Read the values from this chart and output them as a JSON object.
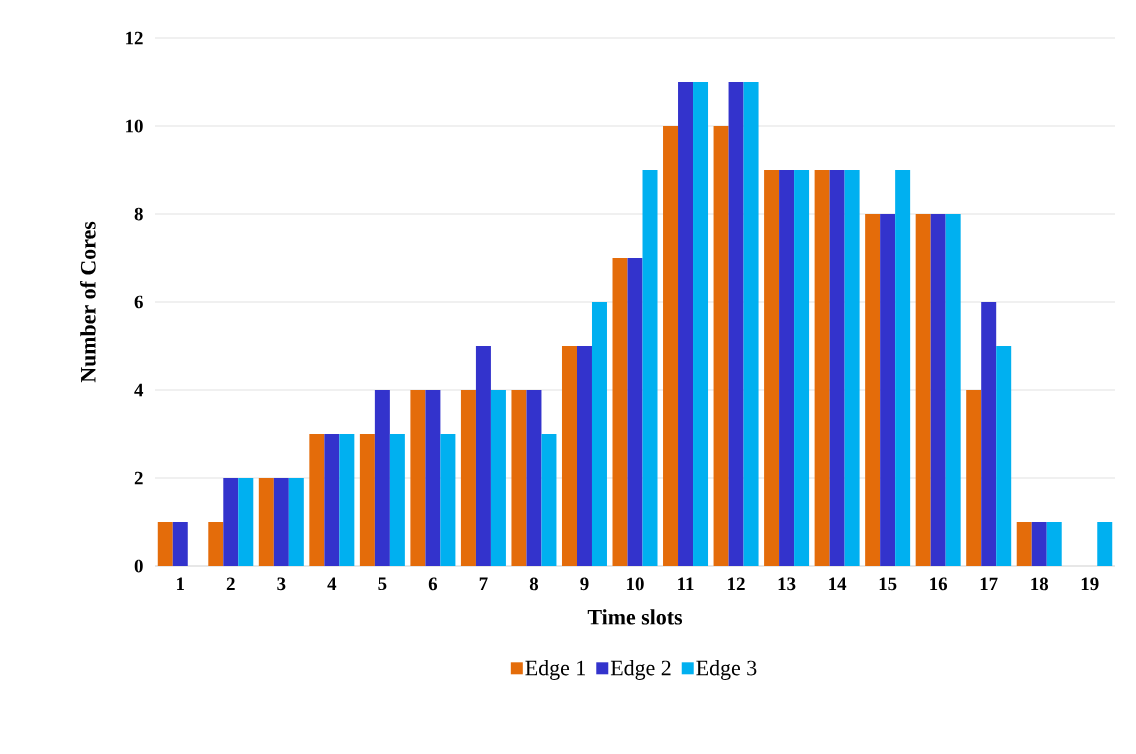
{
  "chart_data": {
    "type": "bar",
    "xlabel": "Time slots",
    "ylabel": "Number of Cores",
    "categories": [
      "1",
      "2",
      "3",
      "4",
      "5",
      "6",
      "7",
      "8",
      "9",
      "10",
      "11",
      "12",
      "13",
      "14",
      "15",
      "16",
      "17",
      "18",
      "19"
    ],
    "series": [
      {
        "name": "Edge 1",
        "color": "#e46c0a",
        "values": [
          1,
          1,
          2,
          3,
          3,
          4,
          4,
          4,
          5,
          7,
          10,
          10,
          9,
          9,
          8,
          8,
          4,
          1,
          0
        ]
      },
      {
        "name": "Edge 2",
        "color": "#3333cc",
        "values": [
          1,
          2,
          2,
          3,
          4,
          4,
          5,
          4,
          5,
          7,
          11,
          11,
          9,
          9,
          8,
          8,
          6,
          1,
          0
        ]
      },
      {
        "name": "Edge 3",
        "color": "#00b0f0",
        "values": [
          0,
          2,
          2,
          3,
          3,
          3,
          4,
          3,
          6,
          9,
          11,
          11,
          9,
          9,
          9,
          8,
          5,
          1,
          1
        ]
      }
    ],
    "ylim": [
      0,
      12
    ],
    "yticks": [
      0,
      2,
      4,
      6,
      8,
      10,
      12
    ],
    "grid": "y",
    "legend": "bottom"
  }
}
